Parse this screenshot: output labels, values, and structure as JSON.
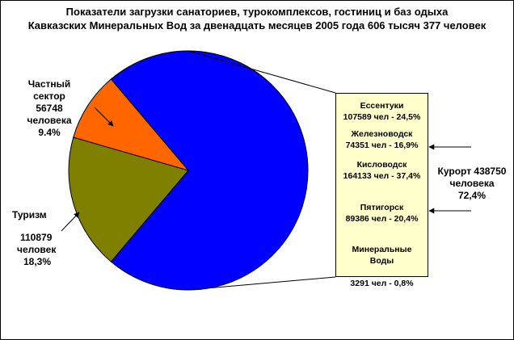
{
  "title": {
    "line1": "Показатели загрузки  санаториев, турокомплексов, гостиниц и баз одыха",
    "line2": "Кавказских Минеральных Вод за двенадцать месяцев 2005 года 606 тысяч 377 человек"
  },
  "colors": {
    "resort": "#0000ff",
    "private": "#ff6600",
    "tourism": "#808000",
    "box": "#ffffcc"
  },
  "labels": {
    "private": [
      "Частный",
      "сектор",
      "56748",
      "человека",
      "9.4%"
    ],
    "tourism": [
      "Туризм",
      "",
      "110879",
      "человек",
      "18,3%"
    ],
    "resort": [
      "Курорт  438750",
      "человека",
      "72,4%"
    ]
  },
  "breakdown": [
    {
      "name": "Ессентуки",
      "value": "107589 чел - 24,5%"
    },
    {
      "name": "Железноводск",
      "value": "74351 чел - 16,9%"
    },
    {
      "name": "Кисловодск",
      "value": "164133 чел -  37,4%"
    },
    {
      "name": "Пятигорск",
      "value": "89386 чел - 20,4%"
    },
    {
      "name": "Минеральные\nВоды",
      "value": "3291 чел - 0,8%"
    }
  ],
  "chart_data": {
    "type": "pie",
    "title": "Показатели загрузки  санаториев, турокомплексов, гостиниц и баз одыха Кавказских Минеральных Вод за двенадцать месяцев 2005 года 606 тысяч 377 человек",
    "slices": [
      {
        "name": "Курорт",
        "value": 438750,
        "percent": 72.4,
        "color": "#0000ff"
      },
      {
        "name": "Туризм",
        "value": 110879,
        "percent": 18.3,
        "color": "#808000"
      },
      {
        "name": "Частный сектор",
        "value": 56748,
        "percent": 9.4,
        "color": "#ff6600"
      }
    ],
    "breakdown_of": "Курорт",
    "breakdown": [
      {
        "name": "Ессентуки",
        "value": 107589,
        "percent": 24.5
      },
      {
        "name": "Железноводск",
        "value": 74351,
        "percent": 16.9
      },
      {
        "name": "Кисловодск",
        "value": 164133,
        "percent": 37.4
      },
      {
        "name": "Пятигорск",
        "value": 89386,
        "percent": 20.4
      },
      {
        "name": "Минеральные Воды",
        "value": 3291,
        "percent": 0.8
      }
    ]
  }
}
